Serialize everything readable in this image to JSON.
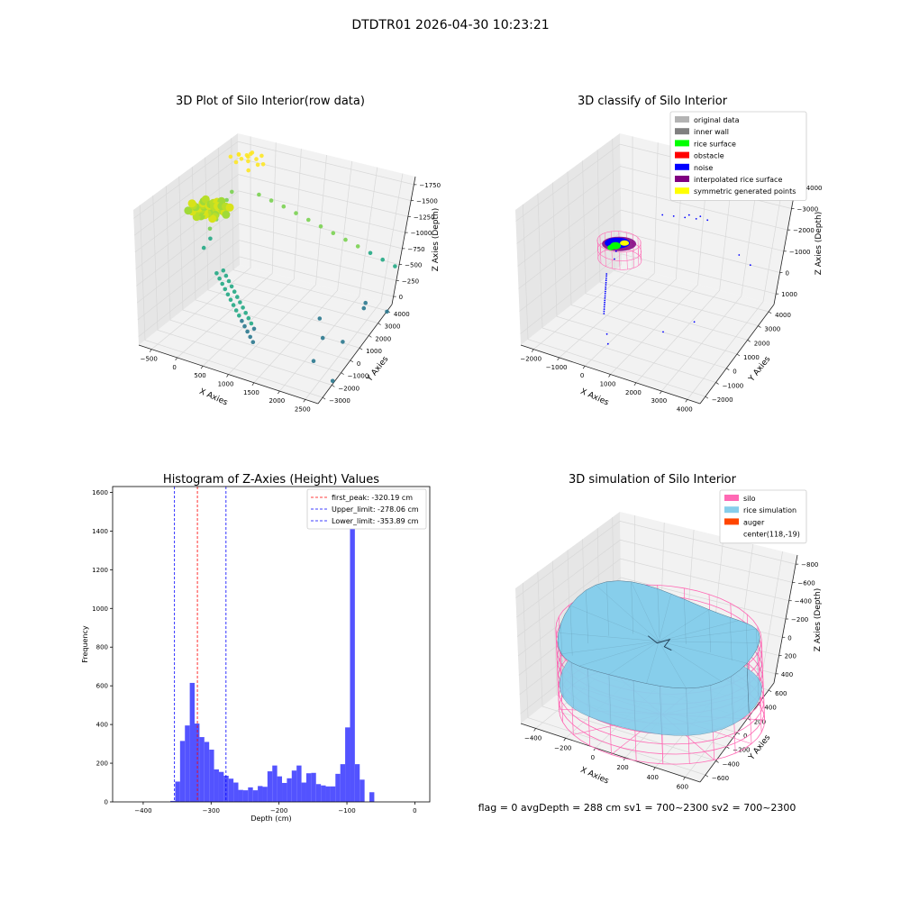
{
  "page": {
    "suptitle": "DTDTR01 2026-04-30 10:23:21",
    "footer": "flag = 0     avgDepth = 288 cm  sv1 = 700~2300  sv2 = 700~2300"
  },
  "colors": {
    "pane": "#f2f2f2",
    "pane_side": "#e6e6e6",
    "grid": "#d8d8d8",
    "hist_bar": "#5050ff",
    "hist_edge": "#4848f0",
    "peak_line": "#ff0000",
    "limit_line": "#0000ff",
    "silo": "#ff69b4",
    "rice": "#87ceeb",
    "rice_edge": "#4b6e86",
    "auger": "#ff4500",
    "noise": "#0000ff",
    "rice_surface": "#00ff00"
  },
  "chart_data": [
    {
      "type": "scatter",
      "title": "3D Plot of Silo Interior(row data)",
      "xlabel": "X Axies",
      "ylabel": "Y Axies",
      "zlabel": "Z Axies (Depth)",
      "x_ticks": [
        "−500",
        "0",
        "500",
        "1000",
        "1500",
        "2000",
        "2500"
      ],
      "y_ticks": [
        "−3000",
        "−2000",
        "−1000",
        "0",
        "1000",
        "2000",
        "3000",
        "4000"
      ],
      "z_ticks": [
        "0",
        "−250",
        "−500",
        "−750",
        "−1000",
        "−1250",
        "−1500",
        "−1750"
      ],
      "xlim": [
        -600,
        2700
      ],
      "ylim": [
        -3000,
        4500
      ],
      "zlim": [
        -1850,
        100
      ],
      "colormap": [
        "#2a788e",
        "#22a884",
        "#7ad151",
        "#fde725"
      ],
      "points": [
        [
          -200,
          3200,
          50
        ],
        [
          -100,
          3400,
          30
        ],
        [
          0,
          3100,
          80
        ],
        [
          100,
          3300,
          40
        ],
        [
          -300,
          3000,
          20
        ],
        [
          50,
          2900,
          60
        ],
        [
          -150,
          2800,
          10
        ],
        [
          150,
          3500,
          70
        ],
        [
          200,
          3000,
          30
        ],
        [
          -50,
          3600,
          50
        ],
        [
          250,
          3200,
          20
        ],
        [
          -250,
          3400,
          0
        ],
        [
          100,
          2700,
          -30
        ],
        [
          0,
          3300,
          90
        ],
        [
          -100,
          3000,
          40
        ],
        [
          -350,
          2000,
          -600
        ],
        [
          -300,
          1800,
          -700
        ],
        [
          -350,
          1500,
          -800
        ],
        [
          -300,
          1300,
          -900
        ],
        [
          -350,
          1000,
          -1000
        ],
        [
          -200,
          2600,
          -400
        ],
        [
          -250,
          2400,
          -500
        ],
        [
          0,
          500,
          -1200
        ],
        [
          100,
          300,
          -1220
        ],
        [
          200,
          100,
          -1240
        ],
        [
          300,
          -100,
          -1260
        ],
        [
          400,
          -300,
          -1280
        ],
        [
          500,
          -500,
          -1300
        ],
        [
          600,
          -700,
          -1320
        ],
        [
          700,
          -900,
          -1340
        ],
        [
          800,
          -1100,
          -1360
        ],
        [
          900,
          -1300,
          -1380
        ],
        [
          1000,
          -1500,
          -1400
        ],
        [
          1100,
          -1700,
          -1420
        ],
        [
          1200,
          -1900,
          -1440
        ],
        [
          1300,
          -2100,
          -1460
        ],
        [
          100,
          600,
          -1150
        ],
        [
          200,
          400,
          -1170
        ],
        [
          300,
          200,
          -1190
        ],
        [
          400,
          0,
          -1210
        ],
        [
          500,
          -200,
          -1230
        ],
        [
          600,
          -400,
          -1250
        ],
        [
          700,
          -600,
          -1270
        ],
        [
          800,
          -800,
          -1290
        ],
        [
          900,
          -1000,
          -1310
        ],
        [
          1000,
          -1200,
          -1330
        ],
        [
          1100,
          -1400,
          -1350
        ],
        [
          1200,
          -1600,
          -1370
        ],
        [
          200,
          3000,
          -400
        ],
        [
          400,
          3100,
          -450
        ],
        [
          600,
          3200,
          -500
        ],
        [
          800,
          3300,
          -560
        ],
        [
          1000,
          3400,
          -620
        ],
        [
          1200,
          3500,
          -680
        ],
        [
          1400,
          3600,
          -740
        ],
        [
          1600,
          3700,
          -800
        ],
        [
          1800,
          3800,
          -860
        ],
        [
          2000,
          3900,
          -920
        ],
        [
          2200,
          4000,
          -980
        ],
        [
          2400,
          4100,
          -1040
        ],
        [
          1500,
          2000,
          -1700
        ],
        [
          1800,
          1000,
          -1750
        ],
        [
          2000,
          -500,
          -1800
        ],
        [
          2300,
          500,
          -1600
        ],
        [
          2500,
          3000,
          -1500
        ],
        [
          2600,
          -1500,
          -1780
        ],
        [
          1900,
          3800,
          -1650
        ],
        [
          2200,
          2500,
          -1450
        ]
      ]
    },
    {
      "type": "scatter",
      "title": "3D classify of Silo Interior",
      "xlabel": "X Axies",
      "ylabel": "Y Axies",
      "zlabel": "Z Axies (Depth)",
      "x_ticks": [
        "−2000",
        "−1000",
        "0",
        "1000",
        "2000",
        "3000",
        "4000"
      ],
      "y_ticks": [
        "−2000",
        "−1000",
        "0",
        "1000",
        "2000",
        "3000",
        "4000"
      ],
      "z_ticks": [
        "1000",
        "0",
        "−1000",
        "−2000",
        "−3000",
        "−4000"
      ],
      "xlim": [
        -2300,
        4300
      ],
      "ylim": [
        -2400,
        4200
      ],
      "zlim": [
        -4200,
        2000
      ],
      "legend": [
        {
          "label": "original data",
          "color": "#b3b3b3"
        },
        {
          "label": "inner wall",
          "color": "#808080"
        },
        {
          "label": "rice surface",
          "color": "#00ff00"
        },
        {
          "label": "obstacle",
          "color": "#ff0000"
        },
        {
          "label": "noise",
          "color": "#0000ff"
        },
        {
          "label": "interpolated rice surface",
          "color": "#800080"
        },
        {
          "label": "symmetric generated points",
          "color": "#ffff00"
        }
      ],
      "cylinder": {
        "center": [
          118,
          -19
        ],
        "radius": 700,
        "z_bottom": -600,
        "z_top": 200
      },
      "noise_points": [
        [
          0,
          3000,
          -300
        ],
        [
          300,
          3200,
          -350
        ],
        [
          600,
          3400,
          -400
        ],
        [
          900,
          3600,
          -450
        ],
        [
          1200,
          3800,
          -500
        ],
        [
          -700,
          500,
          -1900
        ],
        [
          -600,
          300,
          -1950
        ],
        [
          -500,
          100,
          -2000
        ],
        [
          -400,
          -100,
          -2050
        ],
        [
          -300,
          -300,
          -2100
        ],
        [
          -200,
          -500,
          -2150
        ],
        [
          -100,
          -700,
          -2200
        ],
        [
          0,
          -900,
          -2250
        ],
        [
          100,
          -1100,
          -2300
        ],
        [
          200,
          -1300,
          -2350
        ],
        [
          -650,
          400,
          -1920
        ],
        [
          -550,
          200,
          -1970
        ],
        [
          -450,
          0,
          -2020
        ],
        [
          -350,
          -200,
          -2070
        ],
        [
          -250,
          -400,
          -2120
        ],
        [
          -150,
          -600,
          -2170
        ],
        [
          -50,
          -800,
          -2220
        ],
        [
          50,
          -1000,
          -2270
        ],
        [
          150,
          -1200,
          -2320
        ],
        [
          -900,
          1500,
          -1500
        ],
        [
          -800,
          1200,
          -1650
        ],
        [
          400,
          -1500,
          -3100
        ],
        [
          600,
          -1800,
          -3300
        ],
        [
          2800,
          3000,
          -1000
        ],
        [
          3500,
          2500,
          -900
        ],
        [
          2500,
          500,
          -2800
        ],
        [
          1500,
          200,
          -3500
        ],
        [
          700,
          3500,
          -300
        ],
        [
          1000,
          3700,
          -350
        ]
      ]
    },
    {
      "type": "bar",
      "subtype": "histogram",
      "title": "Histogram of Z-Axies (Height) Values",
      "xlabel": "Depth (cm)",
      "ylabel": "Frequency",
      "xlim": [
        -445,
        22
      ],
      "ylim": [
        0,
        1630
      ],
      "x_ticks": [
        -400,
        -300,
        -200,
        -100,
        0
      ],
      "y_ticks": [
        0,
        200,
        400,
        600,
        800,
        1000,
        1200,
        1400,
        1600
      ],
      "bin_width": 7.15,
      "bin_start": -360.0,
      "values": [
        5,
        105,
        315,
        395,
        615,
        405,
        335,
        310,
        270,
        168,
        155,
        135,
        120,
        100,
        62,
        60,
        75,
        60,
        82,
        78,
        158,
        188,
        132,
        98,
        122,
        162,
        188,
        100,
        148,
        150,
        92,
        85,
        80,
        80,
        145,
        195,
        385,
        1560,
        195,
        115,
        0,
        50
      ],
      "lines": [
        {
          "label": "first_peak: -320.19 cm",
          "x": -320.19,
          "color": "#ff0000"
        },
        {
          "label": "Upper_limit: -278.06 cm",
          "x": -278.06,
          "color": "#0000ff"
        },
        {
          "label": "Lower_limit: -353.89 cm",
          "x": -353.89,
          "color": "#0000ff"
        }
      ]
    },
    {
      "type": "area",
      "subtype": "3d-surface",
      "title": "3D simulation of Silo Interior",
      "xlabel": "X Axies",
      "ylabel": "Y Axies",
      "zlabel": "Z Axies (Depth)",
      "x_ticks": [
        "−400",
        "−200",
        "0",
        "200",
        "400",
        "600"
      ],
      "y_ticks": [
        "−600",
        "−400",
        "−200",
        "0",
        "200",
        "400",
        "600"
      ],
      "z_ticks": [
        "400",
        "200",
        "0",
        "−200",
        "−400",
        "−600",
        "−800"
      ],
      "xlim": [
        -600,
        800
      ],
      "ylim": [
        -700,
        700
      ],
      "zlim": [
        -900,
        450
      ],
      "legend": [
        {
          "label": "silo",
          "color": "#ff69b4"
        },
        {
          "label": "rice simulation",
          "color": "#87ceeb"
        },
        {
          "label": "auger",
          "color": "#ff4500"
        },
        {
          "label": "center(118,-19)",
          "color": ""
        }
      ],
      "silo": {
        "center": [
          118,
          -19
        ],
        "radius": 700,
        "z_bottom": -900,
        "z_top": -100
      },
      "rice_level": -288
    }
  ]
}
